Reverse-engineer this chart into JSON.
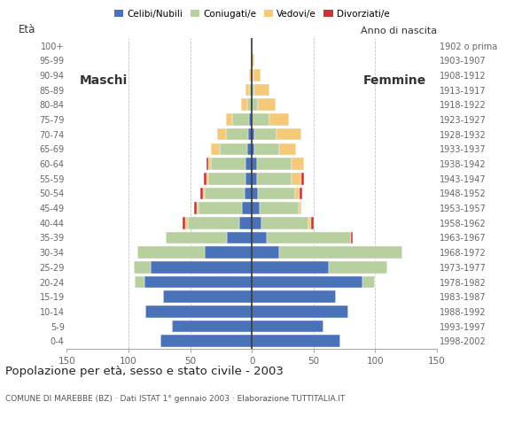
{
  "age_groups": [
    "0-4",
    "5-9",
    "10-14",
    "15-19",
    "20-24",
    "25-29",
    "30-34",
    "35-39",
    "40-44",
    "45-49",
    "50-54",
    "55-59",
    "60-64",
    "65-69",
    "70-74",
    "75-79",
    "80-84",
    "85-89",
    "90-94",
    "95-99",
    "100+"
  ],
  "birth_years": [
    "1998-2002",
    "1993-1997",
    "1988-1992",
    "1983-1987",
    "1978-1982",
    "1973-1977",
    "1968-1972",
    "1963-1967",
    "1958-1962",
    "1953-1957",
    "1948-1952",
    "1943-1947",
    "1938-1942",
    "1933-1937",
    "1928-1932",
    "1923-1927",
    "1918-1922",
    "1913-1917",
    "1908-1912",
    "1903-1907",
    "1902 o prima"
  ],
  "colors": {
    "celibe": "#4a72b8",
    "coniugato": "#b8cfa0",
    "vedovo": "#f5c97a",
    "divorziato": "#cc3333"
  },
  "males": {
    "celibe": [
      74,
      65,
      86,
      72,
      87,
      82,
      38,
      20,
      10,
      8,
      6,
      5,
      5,
      4,
      3,
      2,
      0,
      0,
      0,
      0,
      0
    ],
    "coniugato": [
      0,
      0,
      0,
      0,
      8,
      14,
      55,
      50,
      42,
      35,
      32,
      30,
      28,
      22,
      18,
      14,
      4,
      2,
      1,
      0,
      0
    ],
    "vedovo": [
      0,
      0,
      0,
      0,
      0,
      0,
      0,
      0,
      2,
      2,
      2,
      2,
      2,
      7,
      7,
      5,
      5,
      3,
      1,
      0,
      0
    ],
    "divorziato": [
      0,
      0,
      0,
      0,
      0,
      0,
      0,
      0,
      2,
      2,
      2,
      2,
      2,
      0,
      0,
      0,
      0,
      0,
      0,
      0,
      0
    ]
  },
  "females": {
    "nubile": [
      72,
      58,
      78,
      68,
      90,
      62,
      22,
      12,
      8,
      6,
      5,
      4,
      4,
      2,
      2,
      0,
      0,
      0,
      0,
      0,
      0
    ],
    "coniugata": [
      0,
      0,
      0,
      0,
      10,
      48,
      100,
      68,
      38,
      32,
      30,
      28,
      28,
      20,
      18,
      14,
      5,
      2,
      1,
      0,
      0
    ],
    "vedova": [
      0,
      0,
      0,
      0,
      0,
      0,
      0,
      0,
      2,
      2,
      4,
      8,
      10,
      14,
      20,
      16,
      14,
      12,
      6,
      2,
      0
    ],
    "divorziata": [
      0,
      0,
      0,
      0,
      0,
      0,
      0,
      2,
      2,
      0,
      2,
      2,
      0,
      0,
      0,
      0,
      0,
      0,
      0,
      0,
      0
    ]
  },
  "xlim": 150,
  "title": "Popolazione per età, sesso e stato civile - 2003",
  "subtitle": "COMUNE DI MAREBBE (BZ) · Dati ISTAT 1° gennaio 2003 · Elaborazione TUTTITALIA.IT",
  "ylabel_left": "Età",
  "ylabel_right": "Anno di nascita",
  "label_maschi": "Maschi",
  "label_femmine": "Femmine",
  "xticks": [
    -150,
    -100,
    -50,
    0,
    50,
    100,
    150
  ],
  "xtick_labels": [
    "150",
    "100",
    "50",
    "0",
    "50",
    "100",
    "150"
  ],
  "grid_color": "#aaaaaa",
  "bg_color": "#ffffff",
  "legend_labels": [
    "Celibi/Nubili",
    "Coniugati/e",
    "Vedovi/e",
    "Divorziati/e"
  ]
}
